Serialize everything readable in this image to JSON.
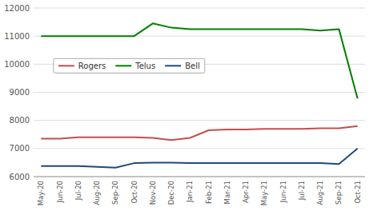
{
  "chart_data": {
    "type": "line",
    "categories": [
      "May-20",
      "Jun-20",
      "Jul-20",
      "Aug-20",
      "Sep-20",
      "Oct-20",
      "Nov-20",
      "Dec-20",
      "Jan-21",
      "Feb-21",
      "Mar-21",
      "Apr-21",
      "May-21",
      "Jun-21",
      "Jul-21",
      "Aug-21",
      "Sep-21",
      "Oct-21"
    ],
    "series": [
      {
        "name": "Rogers",
        "color": "#c0504d",
        "values": [
          7350,
          7350,
          7400,
          7400,
          7400,
          7400,
          7380,
          7300,
          7380,
          7650,
          7680,
          7680,
          7700,
          7700,
          7700,
          7720,
          7720,
          7800
        ]
      },
      {
        "name": "Telus",
        "color": "#008000",
        "values": [
          11000,
          11000,
          11000,
          11000,
          11000,
          11000,
          11450,
          11300,
          11250,
          11250,
          11250,
          11250,
          11250,
          11250,
          11250,
          11200,
          11250,
          8780
        ]
      },
      {
        "name": "Bell",
        "color": "#1f497d",
        "values": [
          6380,
          6380,
          6380,
          6350,
          6320,
          6480,
          6500,
          6500,
          6480,
          6480,
          6480,
          6480,
          6480,
          6480,
          6480,
          6480,
          6450,
          7000
        ]
      }
    ],
    "ylim": [
      6000,
      12000
    ],
    "yticks": [
      6000,
      7000,
      8000,
      9000,
      10000,
      11000,
      12000
    ],
    "grid": true,
    "legend": "upper left"
  }
}
